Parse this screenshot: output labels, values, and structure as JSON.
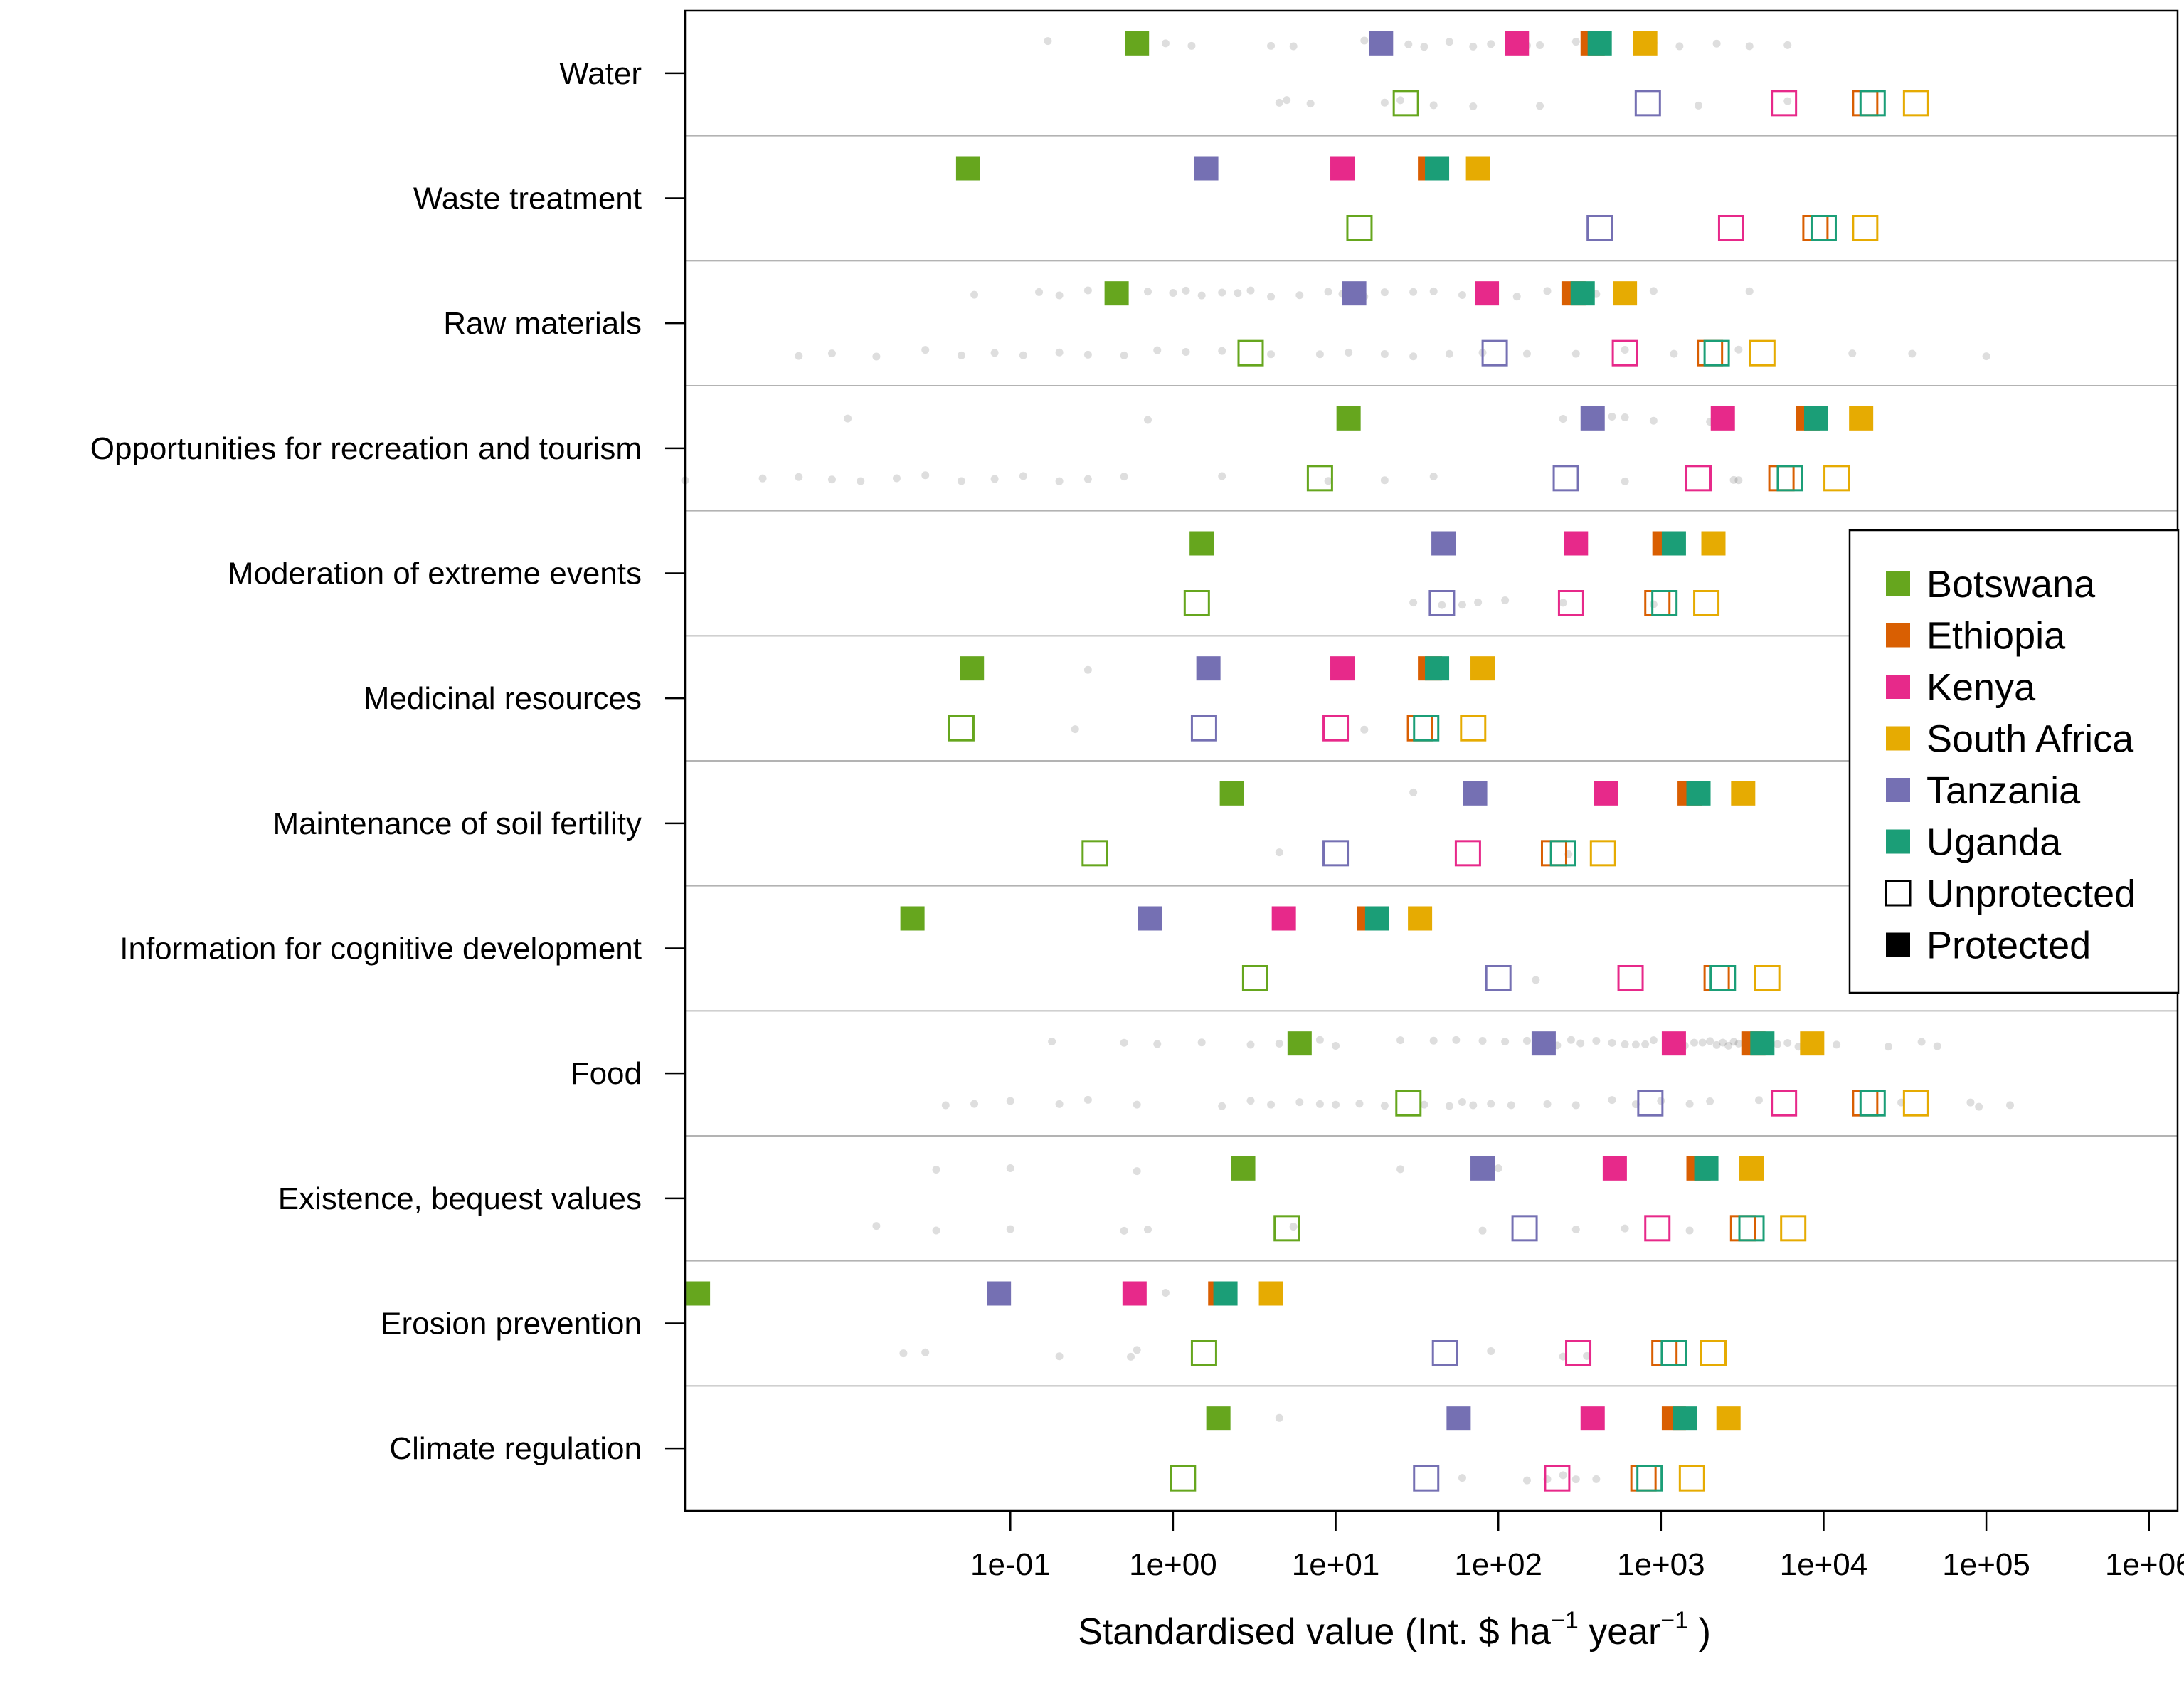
{
  "chart_data": {
    "type": "scatter",
    "title": "",
    "xlabel": {
      "prefix": "Standardised value (Int. $ ha",
      "exp1": "−1",
      "middle": " year",
      "exp2": "−1",
      "suffix": " )"
    },
    "x_scale": "log10",
    "xlim": [
      0.001,
      1500000
    ],
    "x_ticks": [
      {
        "value": 0.1,
        "label": "1e-01"
      },
      {
        "value": 1,
        "label": "1e+00"
      },
      {
        "value": 10,
        "label": "1e+01"
      },
      {
        "value": 100,
        "label": "1e+02"
      },
      {
        "value": 1000,
        "label": "1e+03"
      },
      {
        "value": 10000,
        "label": "1e+04"
      },
      {
        "value": 100000,
        "label": "1e+05"
      },
      {
        "value": 1000000,
        "label": "1e+06"
      }
    ],
    "countries": [
      {
        "name": "Botswana",
        "color": "#66a61e"
      },
      {
        "name": "Ethiopia",
        "color": "#d95f02"
      },
      {
        "name": "Kenya",
        "color": "#e7298a"
      },
      {
        "name": "South Africa",
        "color": "#e6ab02"
      },
      {
        "name": "Tanzania",
        "color": "#7570b3"
      },
      {
        "name": "Uganda",
        "color": "#1b9e77"
      }
    ],
    "status": [
      {
        "name": "Unprotected",
        "style": "open"
      },
      {
        "name": "Protected",
        "style": "filled"
      }
    ],
    "legend_position": "right",
    "series_order": [
      "Botswana",
      "Ethiopia",
      "Kenya",
      "South Africa",
      "Tanzania",
      "Uganda"
    ],
    "categories": [
      {
        "name": "Water",
        "protected": [
          0.6,
          380,
          130,
          800,
          19,
          420
        ],
        "unprotected": [
          27,
          18000,
          5700,
          37000,
          830,
          20000
        ],
        "points_protected": [
          0.17,
          0.9,
          1.3,
          4,
          5.5,
          15,
          28,
          35,
          50,
          70,
          90,
          150,
          180,
          300,
          900,
          1300,
          2200,
          3500,
          6000
        ],
        "points_unprotected": [
          4.5,
          5,
          7,
          20,
          25,
          40,
          70,
          180,
          1700,
          6000
        ]
      },
      {
        "name": "Waste treatment",
        "protected": [
          0.055,
          38,
          11,
          75,
          1.6,
          42
        ],
        "unprotected": [
          14,
          8900,
          2700,
          18000,
          420,
          10000
        ],
        "points_protected": [],
        "points_unprotected": []
      },
      {
        "name": "Raw materials",
        "protected": [
          0.45,
          290,
          85,
          600,
          13,
          330
        ],
        "unprotected": [
          3,
          2000,
          600,
          4200,
          95,
          2200
        ],
        "points_protected": [
          0.06,
          0.15,
          0.2,
          0.3,
          0.5,
          0.7,
          1,
          1.2,
          1.5,
          2,
          2.5,
          3,
          4,
          6,
          9,
          11,
          15,
          20,
          30,
          40,
          60,
          90,
          130,
          200,
          400,
          600,
          900,
          3500
        ],
        "points_unprotected": [
          0.005,
          0.008,
          0.015,
          0.03,
          0.05,
          0.08,
          0.12,
          0.2,
          0.3,
          0.5,
          0.8,
          1.2,
          2,
          4,
          8,
          12,
          20,
          30,
          50,
          80,
          150,
          300,
          600,
          1200,
          3000,
          15000,
          35000,
          100000
        ]
      },
      {
        "name": "Opportunities for recreation and tourism",
        "protected": [
          12,
          8000,
          2400,
          17000,
          380,
          9000
        ],
        "unprotected": [
          8,
          5500,
          1700,
          12000,
          260,
          6200
        ],
        "points_protected": [
          0.01,
          0.7,
          250,
          500,
          600,
          900,
          2000
        ],
        "points_unprotected": [
          0.001,
          0.003,
          0.005,
          0.008,
          0.012,
          0.02,
          0.03,
          0.05,
          0.08,
          0.12,
          0.2,
          0.3,
          0.5,
          2,
          9,
          20,
          40,
          600,
          2800,
          3000
        ]
      },
      {
        "name": "Moderation of extreme events",
        "protected": [
          1.5,
          1050,
          300,
          2100,
          46,
          1200
        ],
        "unprotected": [
          1.4,
          950,
          280,
          1900,
          45,
          1050
        ],
        "points_protected": [],
        "points_unprotected": [
          30,
          45,
          60,
          75,
          110,
          250,
          900
        ]
      },
      {
        "name": "Medicinal resources",
        "protected": [
          0.058,
          38,
          11,
          80,
          1.65,
          42
        ],
        "unprotected": [
          0.05,
          33,
          10,
          70,
          1.55,
          36
        ],
        "points_protected": [
          0.3
        ],
        "points_unprotected": [
          0.25,
          15
        ]
      },
      {
        "name": "Maintenance of soil fertility",
        "protected": [
          2.3,
          1500,
          460,
          3200,
          72,
          1700
        ],
        "unprotected": [
          0.33,
          220,
          65,
          440,
          10,
          250
        ],
        "points_protected": [
          30
        ],
        "points_unprotected": [
          4.5,
          270
        ]
      },
      {
        "name": "Information for cognitive development",
        "protected": [
          0.025,
          16,
          4.8,
          33,
          0.72,
          18
        ],
        "unprotected": [
          3.2,
          2200,
          650,
          4500,
          100,
          2400
        ],
        "points_protected": [],
        "points_unprotected": [
          170
        ]
      },
      {
        "name": "Food",
        "protected": [
          6,
          3700,
          1200,
          8500,
          190,
          4200
        ],
        "unprotected": [
          28,
          18000,
          5700,
          37000,
          860,
          20000
        ],
        "points_protected": [
          0.18,
          0.5,
          0.8,
          1.5,
          3,
          4.5,
          8,
          10,
          25,
          40,
          55,
          80,
          110,
          150,
          180,
          230,
          280,
          320,
          400,
          500,
          600,
          700,
          800,
          900,
          1100,
          1400,
          1600,
          1800,
          2000,
          2200,
          2400,
          2600,
          2800,
          3000,
          3300,
          3600,
          4000,
          4500,
          5200,
          6000,
          7000,
          12000,
          25000,
          40000,
          50000
        ],
        "points_unprotected": [
          0.04,
          0.06,
          0.1,
          0.2,
          0.3,
          0.6,
          2,
          3,
          4,
          6,
          8,
          10,
          14,
          20,
          35,
          50,
          60,
          70,
          90,
          120,
          200,
          300,
          500,
          700,
          1000,
          1500,
          2000,
          4000,
          30000,
          80000,
          90000,
          140000
        ]
      },
      {
        "name": "Existence, bequest values",
        "protected": [
          2.7,
          1700,
          520,
          3600,
          80,
          1900
        ],
        "unprotected": [
          5,
          3200,
          950,
          6500,
          145,
          3600
        ],
        "points_protected": [
          0.035,
          0.1,
          0.6,
          25,
          100
        ],
        "points_unprotected": [
          0.015,
          0.035,
          0.1,
          0.5,
          0.7,
          5.5,
          80,
          300,
          600,
          1500
        ]
      },
      {
        "name": "Erosion prevention",
        "protected": [
          0.0012,
          1.95,
          0.58,
          4,
          0.085,
          2.1
        ],
        "unprotected": [
          1.55,
          1050,
          310,
          2100,
          47,
          1200
        ],
        "points_protected": [
          0.9
        ],
        "points_unprotected": [
          0.022,
          0.03,
          0.2,
          0.55,
          0.6,
          90,
          250,
          350
        ]
      },
      {
        "name": "Climate regulation",
        "protected": [
          1.9,
          1200,
          380,
          2600,
          57,
          1400
        ],
        "unprotected": [
          1.15,
          780,
          230,
          1550,
          36,
          850
        ],
        "points_protected": [
          4.5
        ],
        "points_unprotected": [
          60,
          150,
          200,
          250,
          300,
          400
        ]
      }
    ]
  }
}
